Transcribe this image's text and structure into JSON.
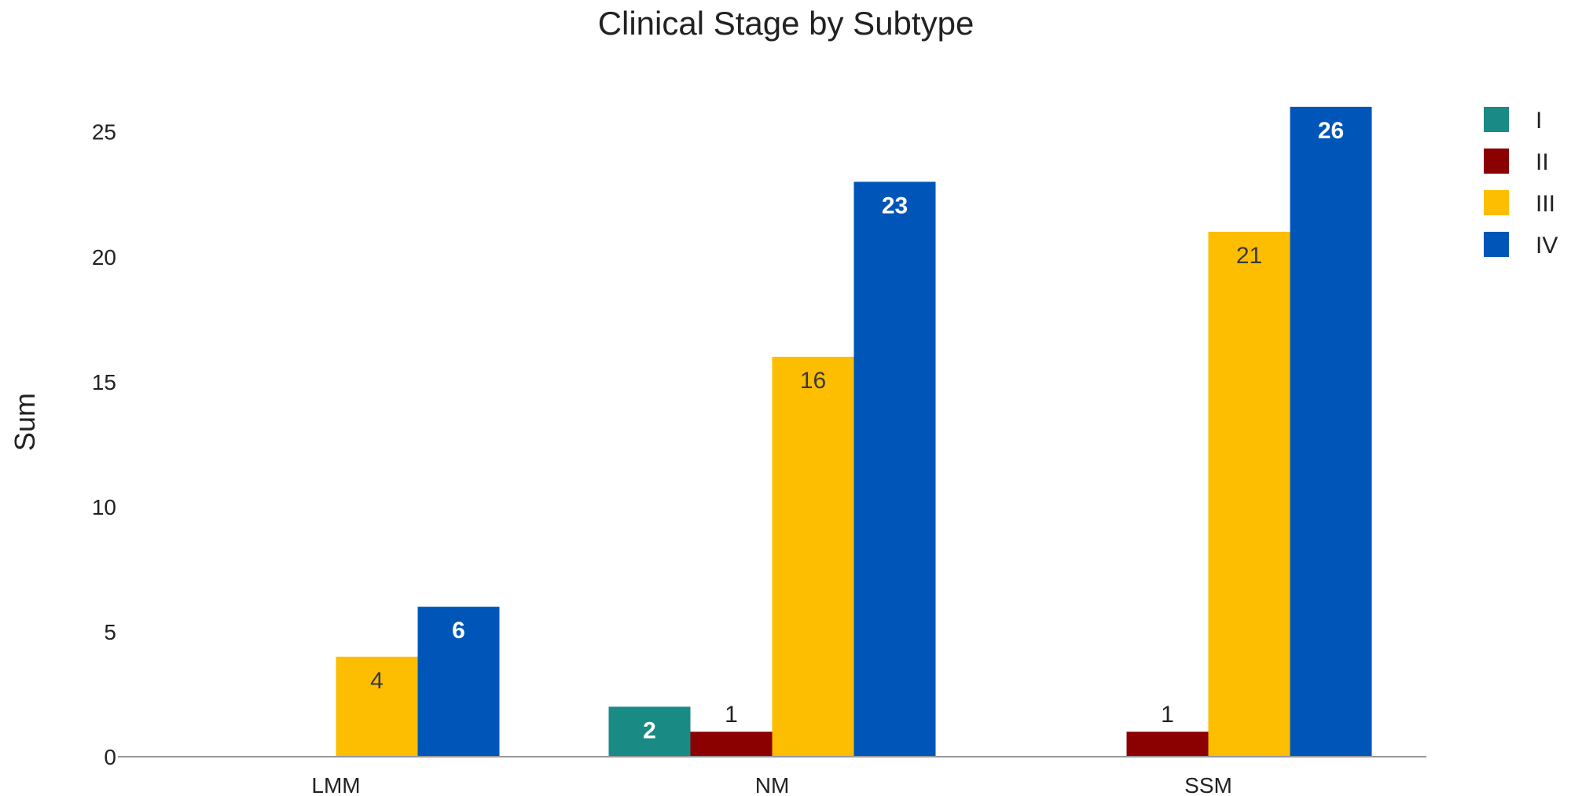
{
  "chart_data": {
    "type": "bar",
    "title": "Clinical Stage by Subtype",
    "xlabel": "",
    "ylabel": "Sum",
    "ylim": [
      0,
      26.5
    ],
    "yticks": [
      0,
      5,
      10,
      15,
      20,
      25
    ],
    "grid": false,
    "legend_position": "top-right",
    "categories": [
      "LMM",
      "NM",
      "SSM"
    ],
    "series": [
      {
        "name": "I",
        "color": "#1a8a84",
        "values": [
          0,
          2,
          0
        ],
        "labels": [
          "",
          "2",
          ""
        ],
        "label_color": "#ffffff",
        "label_pos": "inside"
      },
      {
        "name": "II",
        "color": "#8b0000",
        "values": [
          0,
          1,
          1
        ],
        "labels": [
          "",
          "1",
          "1"
        ],
        "label_color": "#222222",
        "label_pos": "above"
      },
      {
        "name": "III",
        "color": "#fdbd00",
        "values": [
          4,
          16,
          21
        ],
        "labels": [
          "4",
          "16",
          "21"
        ],
        "label_color": "#3a3a3a",
        "label_pos": "inside"
      },
      {
        "name": "IV",
        "color": "#0056b8",
        "values": [
          6,
          23,
          26
        ],
        "labels": [
          "6",
          "23",
          "26"
        ],
        "label_color": "#ffffff",
        "label_pos": "inside"
      }
    ]
  }
}
